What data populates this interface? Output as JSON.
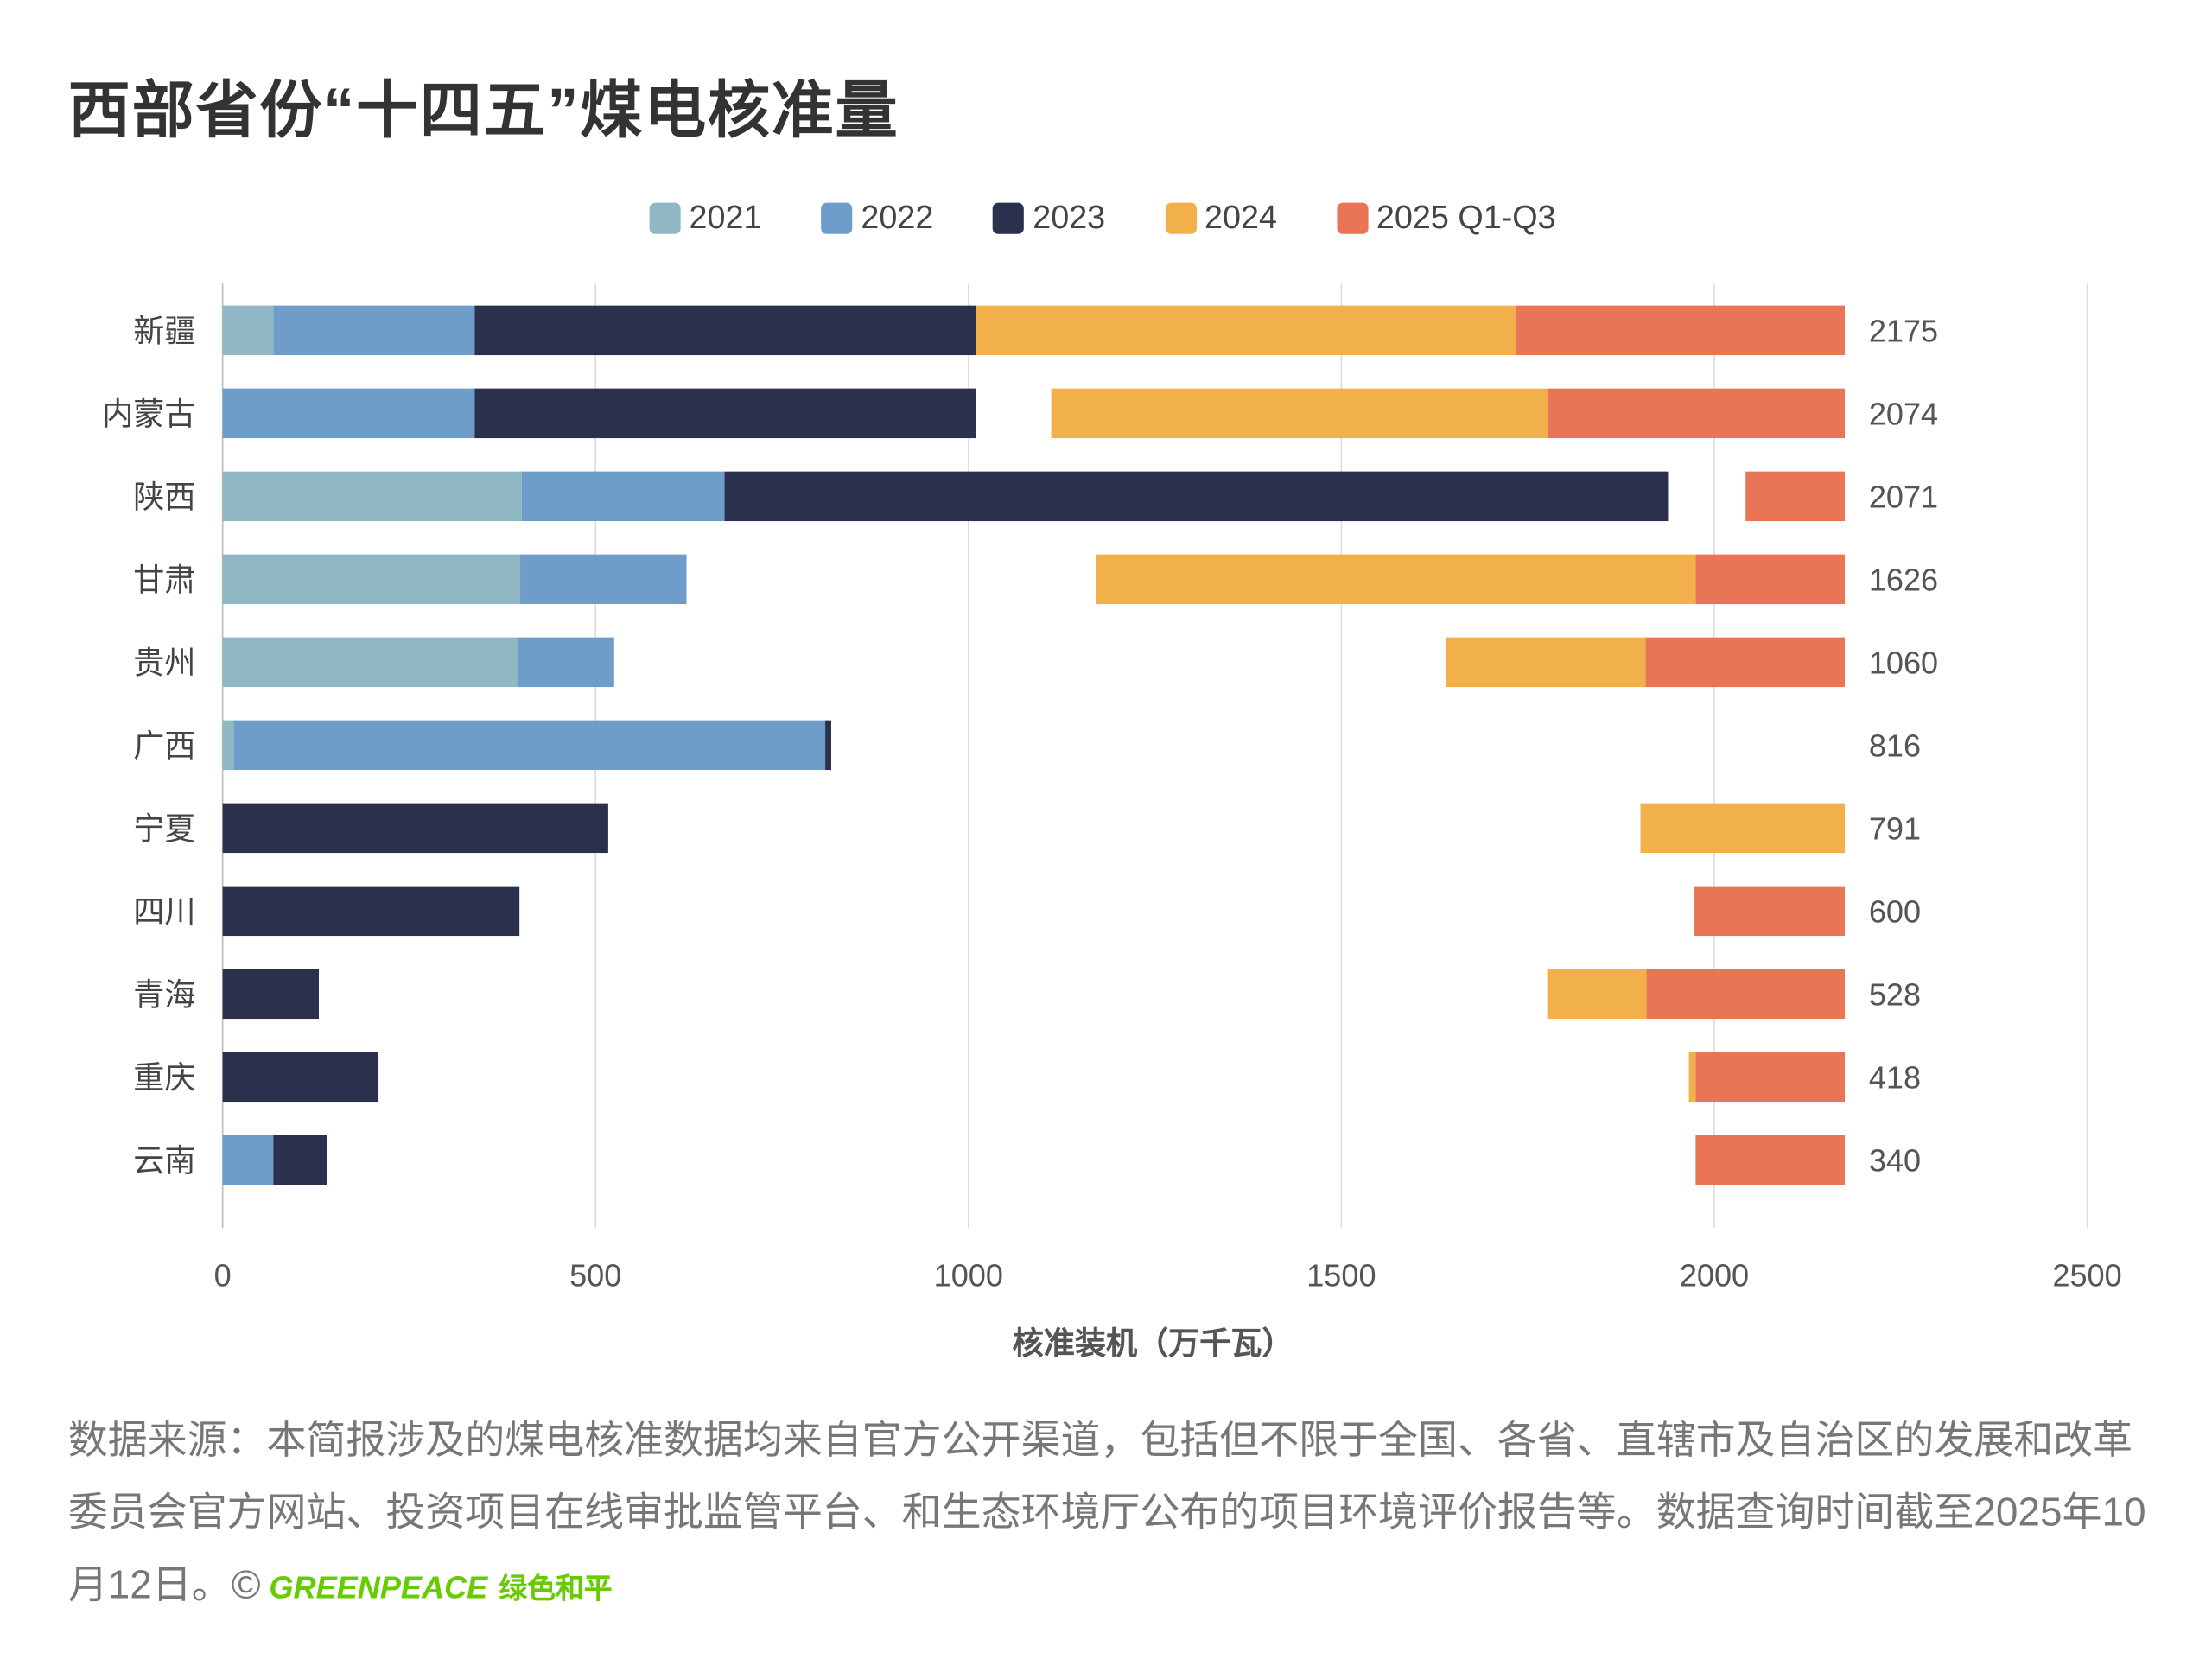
{
  "title": "西部省份“十四五”煤电核准量",
  "source_text": "数据来源：本简报涉及的煤电核准数据均来自官方公开渠道，包括但不限于全国、各省、直辖市及自治区的发展和改革委员会官方网站、投资项目在线审批监管平台、和生态环境厅公布的项目环境评价报告等。数据查询时间截至2025年10月12日。©",
  "logo": {
    "text": "GREENPEACE",
    "text_cn": "绿色和平",
    "color": "#66cc00"
  },
  "chart_data": {
    "type": "bar",
    "orientation": "horizontal-stacked",
    "title": "西部省份“十四五”煤电核准量",
    "xlabel": "核准装机（万千瓦）",
    "ylabel": "",
    "xlim": [
      0,
      2500
    ],
    "xticks": [
      0,
      500,
      1000,
      1500,
      2000,
      2500
    ],
    "grid": true,
    "legend_position": "top",
    "categories": [
      "新疆",
      "内蒙古",
      "陕西",
      "甘肃",
      "贵州",
      "广西",
      "宁夏",
      "四川",
      "青海",
      "重庆",
      "云南"
    ],
    "totals": [
      2175,
      2074,
      2071,
      1626,
      1060,
      816,
      791,
      600,
      528,
      418,
      340
    ],
    "series": [
      {
        "name": "2021",
        "color": "#8fb8c4",
        "align": "left",
        "values": [
          68,
          0,
          401,
          399,
          395,
          15,
          0,
          0,
          0,
          0,
          0
        ]
      },
      {
        "name": "2022",
        "color": "#6f9dca",
        "align": "left",
        "values": [
          270,
          338,
          272,
          223,
          130,
          793,
          0,
          0,
          0,
          0,
          68
        ]
      },
      {
        "name": "2023",
        "color": "#2b314d",
        "align": "left",
        "values": [
          672,
          672,
          1265,
          0,
          0,
          8,
          517,
          398,
          129,
          209,
          72
        ]
      },
      {
        "name": "2024",
        "color": "#f2b04b",
        "align": "right",
        "values": [
          724,
          666,
          0,
          804,
          268,
          0,
          274,
          0,
          133,
          9,
          0
        ]
      },
      {
        "name": "2025 Q1-Q3",
        "color": "#e97556",
        "align": "right",
        "values": [
          441,
          398,
          133,
          200,
          267,
          0,
          0,
          202,
          266,
          200,
          200
        ]
      }
    ]
  }
}
